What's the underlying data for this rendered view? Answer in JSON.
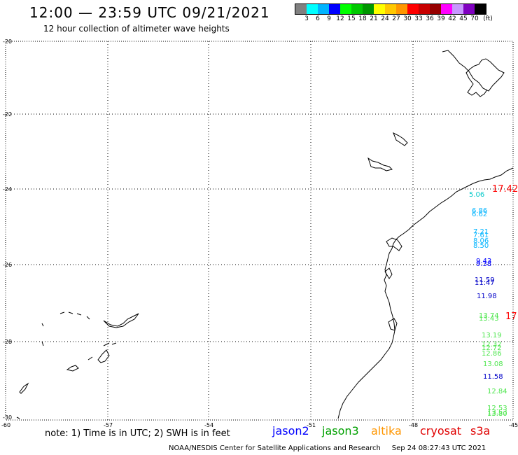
{
  "header": {
    "title": "12:00 — 23:59 UTC 09/21/2021",
    "subtitle": "12 hour collection of altimeter wave heights"
  },
  "legend": {
    "colors": [
      "#808080",
      "#00ffff",
      "#00b4ff",
      "#0000ff",
      "#00ff00",
      "#00c800",
      "#009600",
      "#ffff00",
      "#ffc800",
      "#ff9600",
      "#ff0000",
      "#c80000",
      "#960000",
      "#ff00ff",
      "#c896ff",
      "#8000c0",
      "#000000"
    ],
    "labels": [
      "3",
      "6",
      "9",
      "12",
      "15",
      "18",
      "21",
      "24",
      "27",
      "30",
      "33",
      "36",
      "39",
      "42",
      "45",
      "70"
    ],
    "unit": "(ft)"
  },
  "axes": {
    "lat_labels": [
      "-20",
      "-22",
      "-24",
      "-26",
      "-28",
      "-30"
    ],
    "lon_labels": [
      "-60",
      "-57",
      "-54",
      "-51",
      "-48",
      "-45"
    ]
  },
  "readings": [
    {
      "value": "17.42",
      "color": "#ff0000"
    },
    {
      "value": "5.06",
      "color": "#00c8c8"
    },
    {
      "value": "6.86",
      "color": "#00b4ff"
    },
    {
      "value": "6.62",
      "color": "#00b4ff"
    },
    {
      "value": "7.21",
      "color": "#00b4ff"
    },
    {
      "value": "7.61",
      "color": "#00b4ff"
    },
    {
      "value": "8.06",
      "color": "#00b4ff"
    },
    {
      "value": "8.50",
      "color": "#00b4ff"
    },
    {
      "value": "9.43",
      "color": "#0000ff"
    },
    {
      "value": "9.38",
      "color": "#0000ff"
    },
    {
      "value": "11.59",
      "color": "#0000c8"
    },
    {
      "value": "11.47",
      "color": "#0000c8"
    },
    {
      "value": "11.98",
      "color": "#0000c8"
    },
    {
      "value": "13.74",
      "color": "#50e650"
    },
    {
      "value": "13.43",
      "color": "#50e650"
    },
    {
      "value": "17",
      "color": "#ff0000"
    },
    {
      "value": "13.19",
      "color": "#50e650"
    },
    {
      "value": "12.32",
      "color": "#50e650"
    },
    {
      "value": "12.72",
      "color": "#50e650"
    },
    {
      "value": "12.86",
      "color": "#50e650"
    },
    {
      "value": "13.08",
      "color": "#50e650"
    },
    {
      "value": "11.58",
      "color": "#0000c8"
    },
    {
      "value": "12.84",
      "color": "#50e650"
    },
    {
      "value": "12.53",
      "color": "#50e650"
    },
    {
      "value": "13.53",
      "color": "#50e650"
    },
    {
      "value": "13.80",
      "color": "#50e650"
    }
  ],
  "footer": {
    "note": "note: 1) Time is in UTC; 2) SWH is in feet",
    "satellites": [
      {
        "name": "jason2",
        "color": "#0000ff"
      },
      {
        "name": "jason3",
        "color": "#00a000"
      },
      {
        "name": "altika",
        "color": "#ff9600"
      },
      {
        "name": "cryosat",
        "color": "#e00000"
      },
      {
        "name": "s3a",
        "color": "#e00000"
      }
    ],
    "credit": "NOAA/NESDIS Center for Satellite Applications and Research",
    "timestamp": "Sep 24 08:27:43 UTC 2021"
  }
}
